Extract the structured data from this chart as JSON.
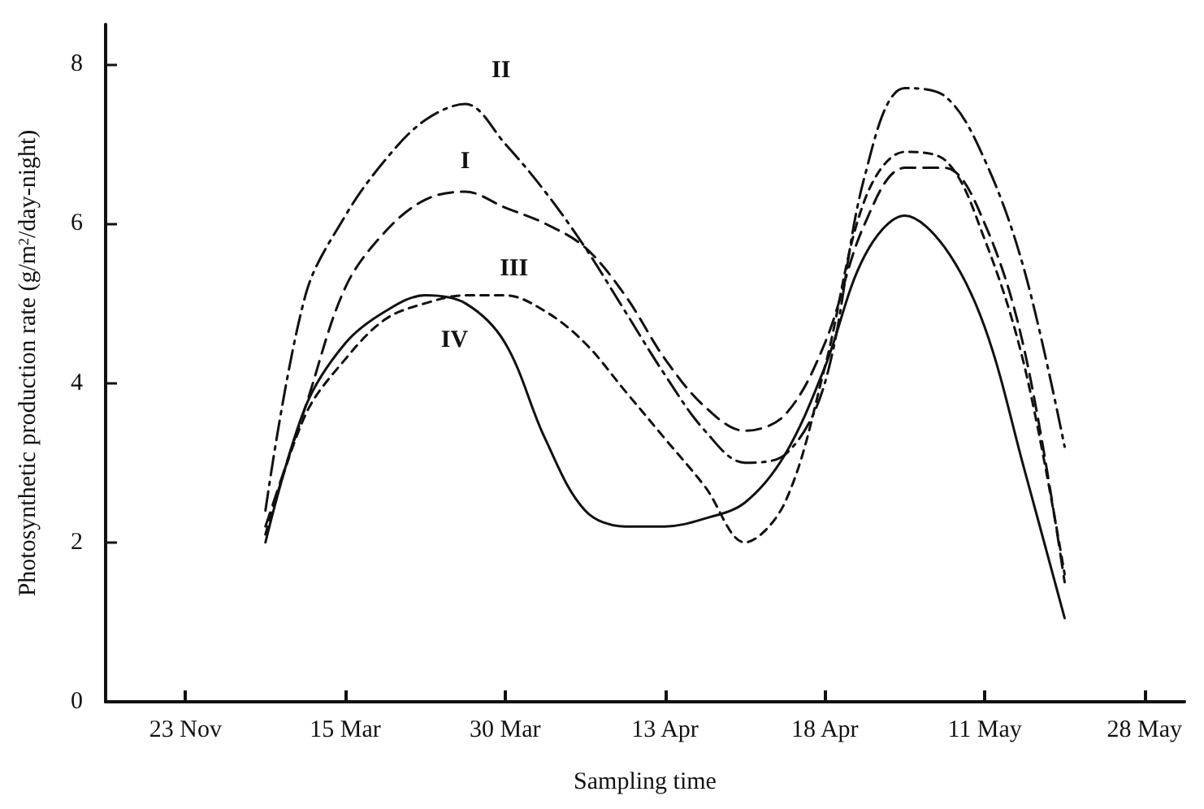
{
  "chart_data": {
    "type": "line",
    "xlabel": "Sampling time",
    "ylabel": "Photosynthetic production rate (g/m$^{2}$/day-night)",
    "categories": [
      null,
      null,
      "23 Nov",
      null,
      null,
      null,
      "15 Mar",
      null,
      null,
      null,
      "30 Mar",
      null,
      null,
      null,
      "13 Apr",
      null,
      null,
      null,
      "18 Apr",
      null,
      null,
      null,
      "11 May",
      null,
      null,
      null,
      "28 May",
      null
    ],
    "ylim": [
      0,
      8.5
    ],
    "yticks": [
      0,
      2,
      4,
      6,
      8
    ],
    "grid": false,
    "legend": false,
    "marker": "none",
    "series": [
      {
        "name": "I",
        "color": "#111111",
        "line_style": "dashed",
        "values": [
          null,
          null,
          null,
          null,
          2.2,
          3.7,
          5.2,
          5.9,
          6.3,
          6.4,
          6.2,
          6.0,
          5.7,
          5.1,
          4.3,
          3.7,
          3.4,
          3.6,
          4.5,
          6.0,
          6.7,
          6.7,
          6.0,
          4.4,
          1.5,
          null,
          null,
          null
        ]
      },
      {
        "name": "II",
        "color": "#111111",
        "line_style": "dashdot",
        "values": [
          null,
          null,
          null,
          null,
          2.4,
          5.1,
          6.1,
          6.8,
          7.3,
          7.5,
          7.0,
          6.4,
          5.7,
          4.9,
          4.1,
          3.4,
          3.0,
          3.1,
          4.0,
          6.6,
          7.7,
          7.6,
          6.8,
          5.4,
          3.2,
          null,
          null,
          null
        ]
      },
      {
        "name": "III",
        "color": "#111111",
        "line_style": "dotted",
        "values": [
          null,
          null,
          null,
          null,
          2.1,
          3.6,
          4.3,
          4.8,
          5.0,
          5.1,
          5.1,
          4.9,
          4.5,
          3.9,
          3.3,
          2.7,
          2.0,
          2.5,
          4.2,
          6.3,
          6.9,
          6.8,
          5.8,
          4.2,
          1.6,
          null,
          null,
          null
        ]
      },
      {
        "name": "IV",
        "color": "#111111",
        "line_style": "solid",
        "values": [
          null,
          null,
          null,
          null,
          2.0,
          3.7,
          4.5,
          4.9,
          5.1,
          5.0,
          4.5,
          3.3,
          2.4,
          2.2,
          2.2,
          2.3,
          2.5,
          3.1,
          4.2,
          5.6,
          6.1,
          5.7,
          4.7,
          2.9,
          1.05,
          null,
          null,
          null
        ]
      }
    ]
  }
}
